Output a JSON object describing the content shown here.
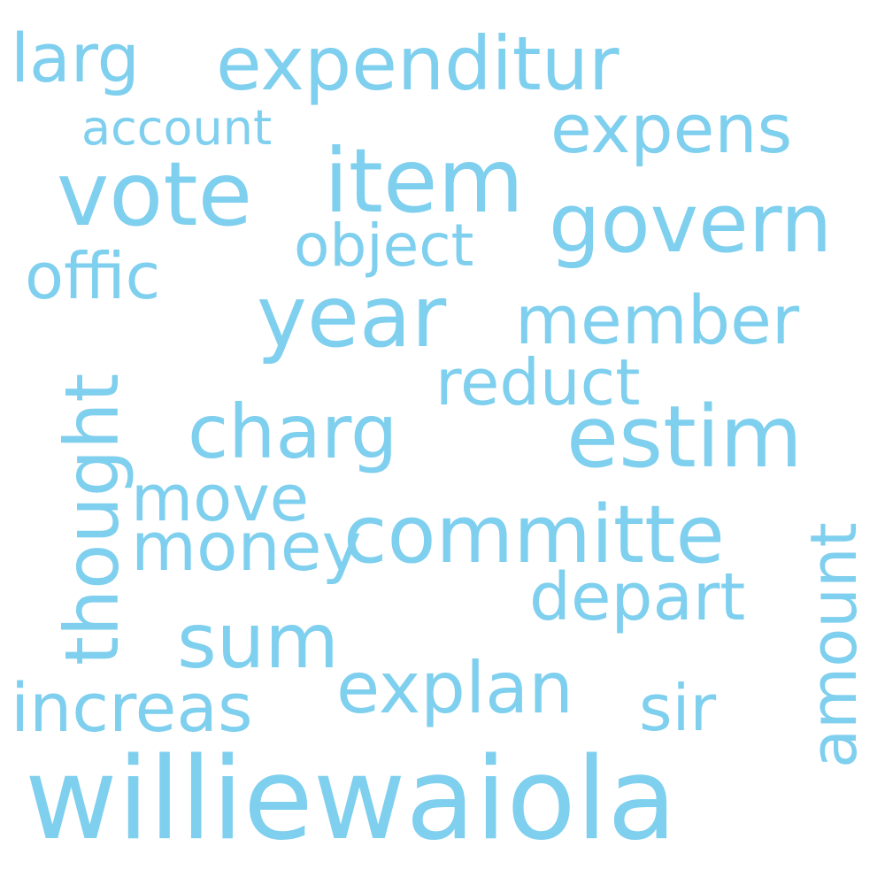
{
  "color": "#7fcfee",
  "words": {
    "williewaiola": "williewaiola",
    "vote": "vote",
    "item": "item",
    "year": "year",
    "estim": "estim",
    "govern": "govern",
    "committe": "committe",
    "expenditur": "expenditur",
    "charg": "charg",
    "sum": "sum",
    "thought": "thought",
    "amount": "amount",
    "explan": "explan",
    "member": "member",
    "money": "money",
    "expens": "expens",
    "increas": "increas",
    "larg": "larg",
    "depart": "depart",
    "offic": "offic",
    "reduct": "reduct",
    "move": "move",
    "object": "object",
    "sir": "sir",
    "account": "account"
  }
}
